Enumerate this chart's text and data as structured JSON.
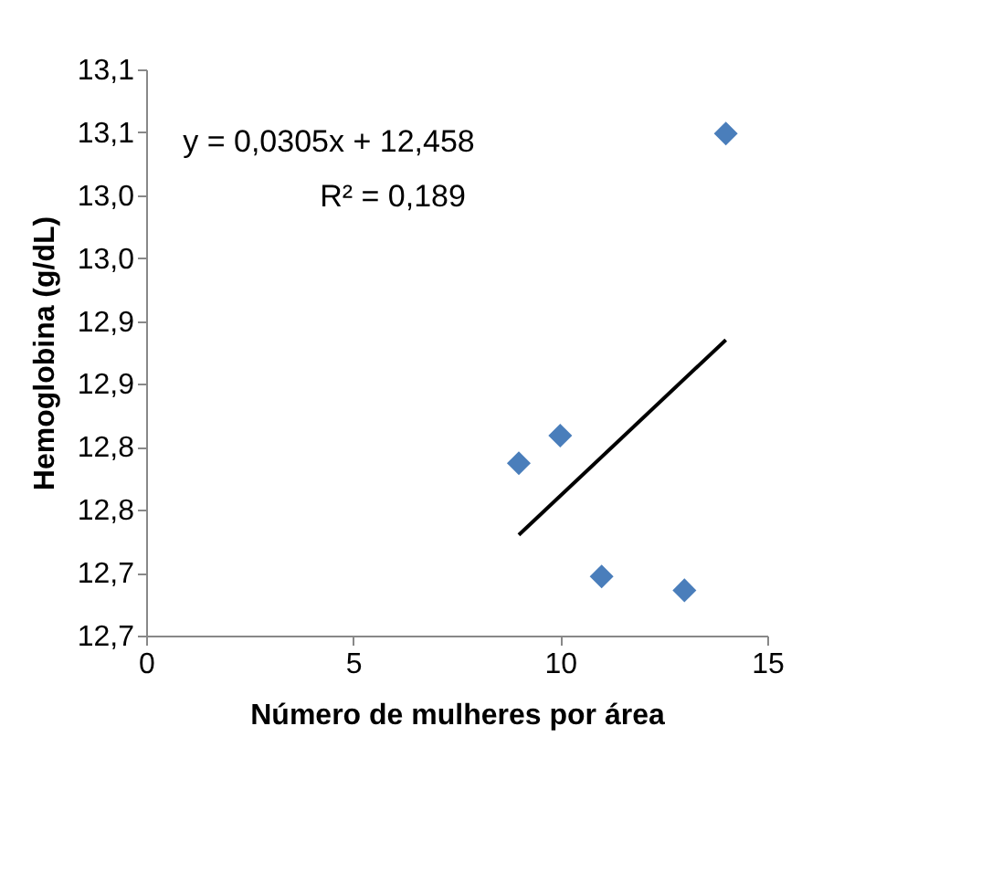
{
  "chart_data": {
    "type": "scatter",
    "xlabel": "Número de mulheres por área",
    "ylabel": "Hemoglobina (g/dL)",
    "xlim": [
      0,
      15
    ],
    "xticks": [
      0,
      5,
      10,
      15
    ],
    "ylim": [
      12.65,
      13.1
    ],
    "yticks": [
      {
        "value": 12.65,
        "label": "12,7"
      },
      {
        "value": 12.7,
        "label": "12,7"
      },
      {
        "value": 12.75,
        "label": "12,8"
      },
      {
        "value": 12.8,
        "label": "12,8"
      },
      {
        "value": 12.85,
        "label": "12,9"
      },
      {
        "value": 12.9,
        "label": "12,9"
      },
      {
        "value": 12.95,
        "label": "13,0"
      },
      {
        "value": 13.0,
        "label": "13,0"
      },
      {
        "value": 13.05,
        "label": "13,1"
      },
      {
        "value": 13.1,
        "label": "13,1"
      }
    ],
    "series": [
      {
        "color": "#4a7ebb",
        "marker": "diamond",
        "x": [
          9,
          10,
          11,
          13,
          14
        ],
        "values": [
          12.787,
          12.809,
          12.697,
          12.686,
          13.049
        ]
      },
      {
        "type": "line",
        "color": "#000000",
        "marker": "none",
        "x": [
          9,
          14
        ],
        "values": [
          12.73,
          12.885
        ]
      }
    ],
    "annotations": [
      "y = 0,0305x + 12,458",
      "R² = 0,189"
    ],
    "grid": false
  }
}
